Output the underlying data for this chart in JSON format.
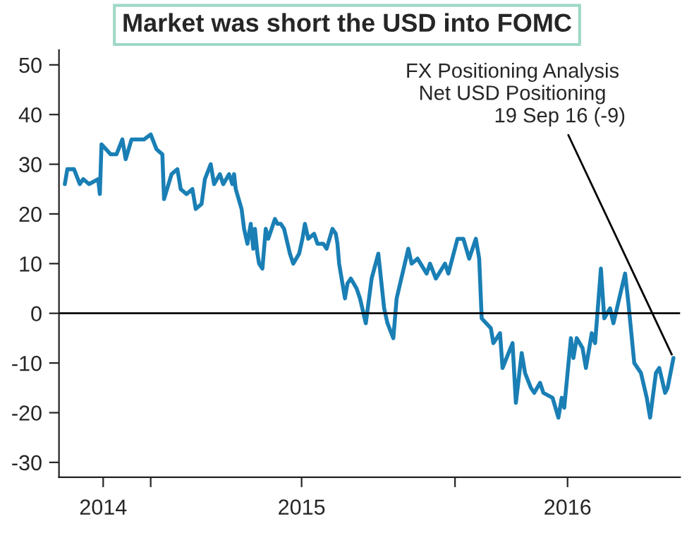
{
  "chart_data": {
    "type": "line",
    "title": "Market was short the USD into FOMC",
    "annotations": [
      "FX Positioning Analysis\nNet USD Positioning",
      {
        "text": "19 Sep 16 (-9)",
        "x": "2016-09-19",
        "y": -9
      }
    ],
    "x": [
      "2014-09-20",
      "2014-09-23",
      "2014-10-01",
      "2014-10-08",
      "2014-10-12",
      "2014-10-19",
      "2014-10-30",
      "2014-11-01",
      "2014-11-03",
      "2014-11-14",
      "2014-11-21",
      "2014-11-28",
      "2014-12-02",
      "2014-12-09",
      "2014-12-13",
      "2014-12-24",
      "2015-01-01",
      "2015-01-08",
      "2015-01-15",
      "2015-01-17",
      "2015-01-26",
      "2015-02-02",
      "2015-02-06",
      "2015-02-13",
      "2015-02-20",
      "2015-02-24",
      "2015-03-03",
      "2015-03-07",
      "2015-03-14",
      "2015-03-18",
      "2015-03-25",
      "2015-03-29",
      "2015-04-05",
      "2015-04-09",
      "2015-04-11",
      "2015-04-13",
      "2015-04-20",
      "2015-04-23",
      "2015-04-27",
      "2015-05-01",
      "2015-05-04",
      "2015-05-06",
      "2015-05-09",
      "2015-05-11",
      "2015-05-15",
      "2015-05-19",
      "2015-05-22",
      "2015-05-26",
      "2015-05-30",
      "2015-06-02",
      "2015-06-06",
      "2015-06-10",
      "2015-06-17",
      "2015-06-21",
      "2015-06-28",
      "2015-07-02",
      "2015-07-05",
      "2015-07-09",
      "2015-07-16",
      "2015-07-20",
      "2015-07-27",
      "2015-07-31",
      "2015-08-07",
      "2015-08-11",
      "2015-08-13",
      "2015-08-15",
      "2015-08-22",
      "2015-08-25",
      "2015-08-29",
      "2015-09-05",
      "2015-09-09",
      "2015-09-16",
      "2015-09-23",
      "2015-10-01",
      "2015-10-08",
      "2015-10-12",
      "2015-10-19",
      "2015-10-23",
      "2015-11-06",
      "2015-11-10",
      "2015-11-17",
      "2015-11-28",
      "2015-12-02",
      "2015-12-09",
      "2015-12-20",
      "2015-12-24",
      "2016-01-04",
      "2016-01-11",
      "2016-01-18",
      "2016-01-26",
      "2016-01-30",
      "2016-02-02",
      "2016-02-13",
      "2016-02-16",
      "2016-02-24",
      "2016-02-27",
      "2016-03-10",
      "2016-03-14",
      "2016-03-21",
      "2016-03-25",
      "2016-04-01",
      "2016-04-05",
      "2016-04-12",
      "2016-04-16",
      "2016-04-27",
      "2016-05-04",
      "2016-05-08",
      "2016-05-11",
      "2016-05-19",
      "2016-05-22",
      "2016-05-26",
      "2016-06-02",
      "2016-06-06",
      "2016-06-13",
      "2016-06-17",
      "2016-06-24",
      "2016-06-28",
      "2016-07-05",
      "2016-07-09",
      "2016-07-23",
      "2016-07-27",
      "2016-08-03",
      "2016-08-11",
      "2016-08-18",
      "2016-08-22",
      "2016-08-29",
      "2016-09-02",
      "2016-09-09",
      "2016-09-12",
      "2016-09-19"
    ],
    "series": [
      {
        "color": "#1a7fb5",
        "values": [
          26,
          29,
          29,
          26,
          27,
          26,
          27,
          24,
          34,
          32,
          32,
          35,
          31,
          35,
          35,
          35,
          36,
          33,
          32,
          23,
          28,
          29,
          25,
          24,
          25,
          21,
          22,
          27,
          30,
          26,
          28,
          26,
          28,
          26,
          28,
          25,
          21,
          17,
          14,
          18,
          13,
          17,
          12,
          10,
          9,
          17,
          15,
          17,
          19,
          18,
          18,
          17,
          12,
          10,
          12,
          15,
          18,
          15,
          16,
          14,
          14,
          13,
          17,
          16,
          14,
          10,
          3,
          6,
          7,
          5,
          3,
          -2,
          7,
          12,
          1,
          -2,
          -5,
          3,
          13,
          10,
          11,
          8,
          10,
          7,
          10,
          8,
          15,
          15,
          11,
          15,
          11,
          -1,
          -3,
          -6,
          -4,
          -11,
          -6,
          -18,
          -8,
          -12,
          -15,
          -16,
          -14,
          -16,
          -17,
          -21,
          -17,
          -19,
          -5,
          -9,
          -5,
          -7,
          -11,
          -4,
          -6,
          9,
          -1,
          1,
          -2,
          8,
          2,
          -10,
          -12,
          -17,
          -21,
          -12,
          -11,
          -16,
          -15,
          -9
        ]
      }
    ],
    "xlim": [
      "2014-09-13",
      "2016-09-27"
    ],
    "ylim": [
      -33,
      53
    ],
    "xticks": [
      {
        "value": "2014-11-05",
        "label": "2014"
      },
      {
        "value": "2015-01-01",
        "label": null
      },
      {
        "value": "2015-07-01",
        "label": "2015"
      },
      {
        "value": "2016-01-01",
        "label": null
      },
      {
        "value": "2016-05-15",
        "label": "2016"
      }
    ],
    "yticks": [
      -30,
      -20,
      -10,
      0,
      10,
      20,
      30,
      40,
      50
    ],
    "ref_lines": [
      {
        "axis": "y",
        "value": 0,
        "color": "#000000"
      }
    ],
    "grid": false,
    "legend": false
  }
}
